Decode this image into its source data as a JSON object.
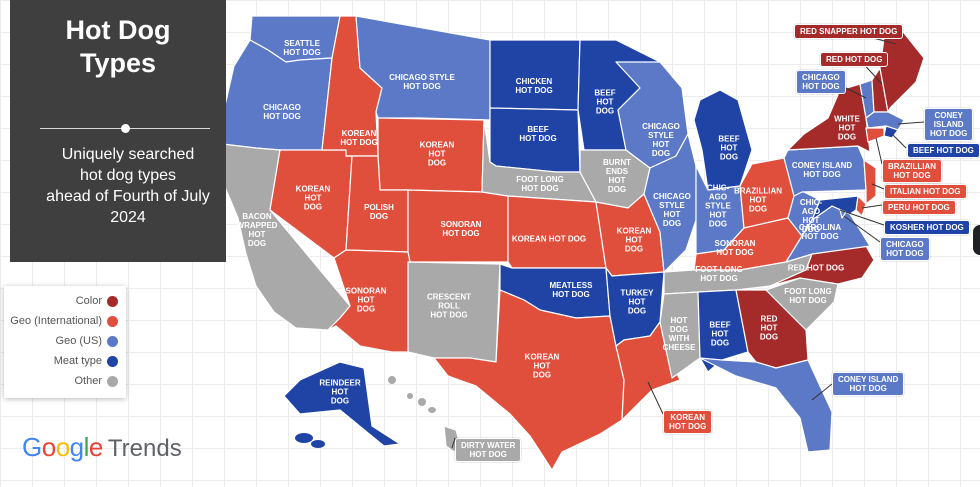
{
  "title": "Hot Dog\nTypes",
  "subtitle": "Uniquely searched\nhot dog types\nahead of Fourth of July\n2024",
  "legend": {
    "items": [
      {
        "label": "Color",
        "color": "#a52a2a"
      },
      {
        "label": "Geo (International)",
        "color": "#e04e3c"
      },
      {
        "label": "Geo (US)",
        "color": "#5b79c6"
      },
      {
        "label": "Meat type",
        "color": "#1f44a6"
      },
      {
        "label": "Other",
        "color": "#a9a9a9"
      }
    ]
  },
  "brand": {
    "google": "Google",
    "trends": "Trends"
  },
  "map": {
    "states": [
      {
        "code": "WA",
        "label": "SEATTLE\nHOT DOG",
        "category": "geo_us"
      },
      {
        "code": "OR",
        "label": "CHICAGO\nHOT DOG",
        "category": "geo_us"
      },
      {
        "code": "CA",
        "label": "BACON\nWRAPPED\nHOT\nDOG",
        "category": "other"
      },
      {
        "code": "NV",
        "label": "KOREAN\nHOT\nDOG",
        "category": "geo_intl"
      },
      {
        "code": "ID",
        "label": "KOREAN\nHOT DOG",
        "category": "geo_intl"
      },
      {
        "code": "MT",
        "label": "CHICAGO STYLE\nHOT DOG",
        "category": "geo_us"
      },
      {
        "code": "WY",
        "label": "KOREAN\nHOT\nDOG",
        "category": "geo_intl"
      },
      {
        "code": "UT",
        "label": "POLISH\nDOG",
        "category": "geo_intl"
      },
      {
        "code": "CO",
        "label": "SONORAN\nHOT DOG",
        "category": "geo_intl"
      },
      {
        "code": "AZ",
        "label": "SONORAN\nHOT\nDOG",
        "category": "geo_intl"
      },
      {
        "code": "NM",
        "label": "CRESCENT\nROLL\nHOT DOG",
        "category": "other"
      },
      {
        "code": "ND",
        "label": "CHICKEN\nHOT DOG",
        "category": "meat"
      },
      {
        "code": "SD",
        "label": "BEEF\nHOT DOG",
        "category": "meat"
      },
      {
        "code": "NE",
        "label": "FOOT LONG\nHOT DOG",
        "category": "other"
      },
      {
        "code": "KS",
        "label": "KOREAN HOT DOG",
        "category": "geo_intl"
      },
      {
        "code": "OK",
        "label": "MEATLESS\nHOT DOG",
        "category": "meat"
      },
      {
        "code": "TX",
        "label": "KOREAN\nHOT\nDOG",
        "category": "geo_intl"
      },
      {
        "code": "MN",
        "label": "BEEF\nHOT\nDOG",
        "category": "meat"
      },
      {
        "code": "IA",
        "label": "BURNT\nENDS\nHOT\nDOG",
        "category": "other"
      },
      {
        "code": "MO",
        "label": "KOREAN\nHOT\nDOG",
        "category": "geo_intl"
      },
      {
        "code": "AR",
        "label": "TURKEY\nHOT\nDOG",
        "category": "meat"
      },
      {
        "code": "LA",
        "label": "",
        "category": "geo_intl"
      },
      {
        "code": "WI",
        "label": "CHICAGO\nSTYLE\nHOT\nDOG",
        "category": "geo_us"
      },
      {
        "code": "IL",
        "label": "CHICAGO\nSTYLE\nHOT\nDOG",
        "category": "geo_us"
      },
      {
        "code": "MI",
        "label": "BEEF\nHOT\nDOG",
        "category": "meat"
      },
      {
        "code": "IN",
        "label": "CHIC-\nAGO\nSTYLE\nHOT\nDOG",
        "category": "geo_us"
      },
      {
        "code": "OH",
        "label": "BRAZILLIAN\nHOT\nDOG",
        "category": "geo_intl"
      },
      {
        "code": "KY",
        "label": "SONORAN\nHOT DOG",
        "category": "geo_intl"
      },
      {
        "code": "TN",
        "label": "FOOT LONG\nHOT DOG",
        "category": "other"
      },
      {
        "code": "MS",
        "label": "HOT\nDOG\nWITH\nCHEESE",
        "category": "other"
      },
      {
        "code": "AL",
        "label": "BEEF\nHOT\nDOG",
        "category": "meat"
      },
      {
        "code": "GA",
        "label": "RED\nHOT\nDOG",
        "category": "color"
      },
      {
        "code": "FL",
        "label": "",
        "category": "geo_us"
      },
      {
        "code": "SC",
        "label": "FOOT LONG\nHOT DOG",
        "category": "other"
      },
      {
        "code": "NC",
        "label": "RED HOT DOG",
        "category": "color"
      },
      {
        "code": "VA",
        "label": "CAROLINA\nHOT DOG",
        "category": "geo_us"
      },
      {
        "code": "WV",
        "label": "CHIC-\nAGO\nHOT\nDOG",
        "category": "geo_us"
      },
      {
        "code": "PA",
        "label": "CONEY ISLAND\nHOT DOG",
        "category": "geo_us"
      },
      {
        "code": "NY",
        "label": "WHITE\nHOT\nDOG",
        "category": "color"
      },
      {
        "code": "VT",
        "label": "",
        "category": "geo_us"
      },
      {
        "code": "NH",
        "label": "",
        "category": "color"
      },
      {
        "code": "ME",
        "label": "",
        "category": "color"
      },
      {
        "code": "MA",
        "label": "",
        "category": "geo_us"
      },
      {
        "code": "RI",
        "label": "",
        "category": "meat"
      },
      {
        "code": "CT",
        "label": "",
        "category": "geo_intl"
      },
      {
        "code": "NJ",
        "label": "",
        "category": "geo_intl"
      },
      {
        "code": "DE",
        "label": "",
        "category": "geo_intl"
      },
      {
        "code": "MD",
        "label": "",
        "category": "meat"
      },
      {
        "code": "DC",
        "label": "",
        "category": "geo_us"
      },
      {
        "code": "AK",
        "label": "REINDEER\nHOT\nDOG",
        "category": "meat"
      },
      {
        "code": "HI",
        "label": "",
        "category": "other"
      }
    ],
    "callouts": [
      {
        "state": "ME",
        "label": "RED SNAPPER HOT DOG",
        "category": "color"
      },
      {
        "state": "NH",
        "label": "RED HOT DOG",
        "category": "color"
      },
      {
        "state": "VT",
        "label": "CHICAGO\nHOT DOG",
        "category": "geo_us"
      },
      {
        "state": "MA",
        "label": "CONEY\nISLAND\nHOT DOG",
        "category": "geo_us"
      },
      {
        "state": "RI",
        "label": "BEEF HOT DOG",
        "category": "meat"
      },
      {
        "state": "CT",
        "label": "BRAZILLIAN\nHOT DOG",
        "category": "geo_intl"
      },
      {
        "state": "NJ",
        "label": "ITALIAN HOT DOG",
        "category": "geo_intl"
      },
      {
        "state": "DE",
        "label": "PERU HOT DOG",
        "category": "geo_intl"
      },
      {
        "state": "MD",
        "label": "KOSHER HOT DOG",
        "category": "meat"
      },
      {
        "state": "DC",
        "label": "CHICAGO\nHOT DOG",
        "category": "geo_us"
      },
      {
        "state": "FL",
        "label": "CONEY ISLAND\nHOT DOG",
        "category": "geo_us"
      },
      {
        "state": "LA",
        "label": "KOREAN\nHOT DOG",
        "category": "geo_intl"
      },
      {
        "state": "HI",
        "label": "DIRTY WATER\nHOT DOG",
        "category": "other"
      }
    ]
  },
  "colors": {
    "color": "#a52a2a",
    "geo_intl": "#e04e3c",
    "geo_us": "#5b79c6",
    "meat": "#1f44a6",
    "other": "#a9a9a9"
  }
}
